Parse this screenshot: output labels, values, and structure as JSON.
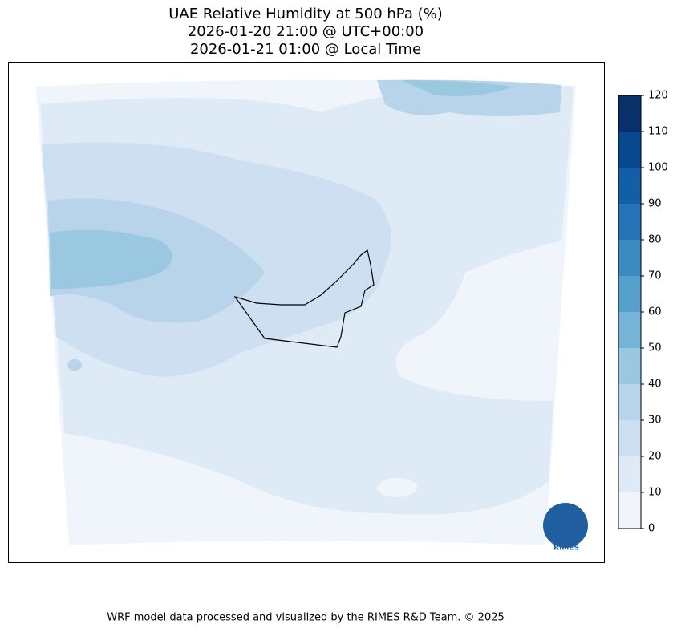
{
  "header": {
    "title_lines": [
      "UAE Relative Humidity at 500 hPa (%)",
      "2026-01-20 21:00 @ UTC+00:00",
      "2026-01-21 01:00 @ Local Time"
    ]
  },
  "colorbar": {
    "levels": [
      0,
      10,
      20,
      30,
      40,
      50,
      60,
      70,
      80,
      90,
      100,
      110,
      120
    ],
    "colors": [
      "#eff5fb",
      "#deebf7",
      "#cddff1",
      "#b7d4ea",
      "#9ac8e0",
      "#75b3d8",
      "#56a0ce",
      "#3b8bc2",
      "#2474b7",
      "#135fa7",
      "#08488e",
      "#08306b"
    ]
  },
  "logo": {
    "text": "RIMES"
  },
  "footer": "WRF model data processed and visualized by the RIMES R&D Team. © 2025"
}
